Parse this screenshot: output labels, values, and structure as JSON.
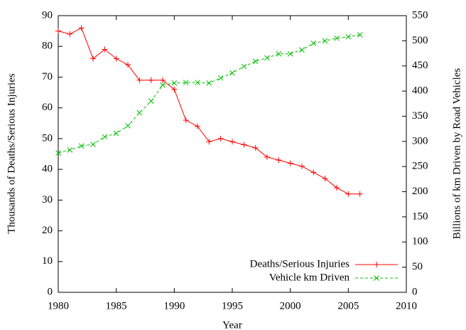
{
  "chart_data": {
    "type": "line",
    "xlabel": "Year",
    "ylabel": "Thousands of Deaths/Serious Injuries",
    "y2label": "Billions of km Driven by Road Vehicles",
    "x": [
      1980,
      1981,
      1982,
      1983,
      1984,
      1985,
      1986,
      1987,
      1988,
      1989,
      1990,
      1991,
      1992,
      1993,
      1994,
      1995,
      1996,
      1997,
      1998,
      1999,
      2000,
      2001,
      2002,
      2003,
      2004,
      2005,
      2006
    ],
    "series": [
      {
        "name": "Deaths/Serious Injuries",
        "color": "#ff0000",
        "marker": "+",
        "values": [
          85,
          84,
          86,
          76,
          79,
          76,
          74,
          69,
          69,
          69,
          66,
          56,
          54,
          49,
          50,
          49,
          48,
          47,
          44,
          43,
          42,
          41,
          39,
          37,
          34,
          32,
          32
        ]
      },
      {
        "name": "Vehicle km Driven",
        "color": "#00c000",
        "marker": "x",
        "axis": "y2",
        "dashed": true,
        "values": [
          277,
          283,
          291,
          294,
          309,
          316,
          331,
          357,
          380,
          412,
          416,
          417,
          417,
          416,
          426,
          436,
          449,
          459,
          466,
          474,
          474,
          482,
          495,
          500,
          505,
          508,
          512
        ]
      }
    ],
    "xlim": [
      1980,
      2010
    ],
    "xticks": [
      1980,
      1985,
      1990,
      1995,
      2000,
      2005,
      2010
    ],
    "ylim": [
      0,
      90
    ],
    "yticks": [
      0,
      10,
      20,
      30,
      40,
      50,
      60,
      70,
      80,
      90
    ],
    "y2lim": [
      0,
      550
    ],
    "y2ticks": [
      0,
      50,
      100,
      150,
      200,
      250,
      300,
      350,
      400,
      450,
      500,
      550
    ],
    "legend": "bottom right"
  }
}
